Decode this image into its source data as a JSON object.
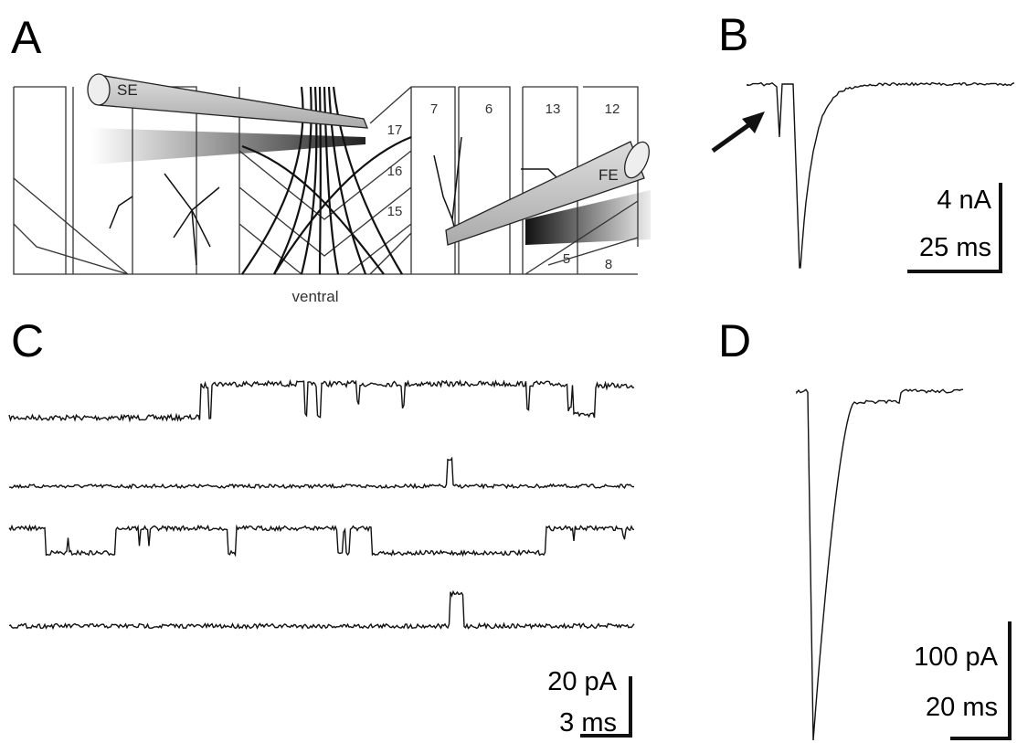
{
  "panel_a": {
    "label": "A",
    "electrodes": [
      "SE",
      "FE"
    ],
    "segments": [
      "17",
      "16",
      "15",
      "7",
      "6",
      "13",
      "12",
      "5",
      "8"
    ],
    "caption": "ventral"
  },
  "panel_b": {
    "label": "B",
    "scale": [
      "4 nA",
      "25 ms"
    ]
  },
  "panel_c": {
    "label": "C",
    "scale": [
      "20 pA",
      "3 ms"
    ]
  },
  "panel_d": {
    "label": "D",
    "scale": [
      "100 pA",
      "20 ms"
    ]
  }
}
